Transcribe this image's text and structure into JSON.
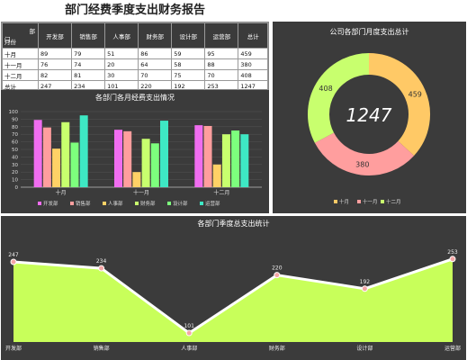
{
  "page_title": "部门经费季度支出财务报告",
  "table": {
    "corner_top": "部",
    "corner_mid": "门",
    "corner_bottom": "月份",
    "headers": [
      "开发部",
      "销售部",
      "人事部",
      "财务部",
      "设计部",
      "运营部",
      "总计"
    ],
    "rows": [
      {
        "label": "十月",
        "values": [
          89,
          79,
          51,
          86,
          59,
          95,
          459
        ]
      },
      {
        "label": "十一月",
        "values": [
          76,
          74,
          20,
          64,
          58,
          88,
          380
        ]
      },
      {
        "label": "十二月",
        "values": [
          82,
          81,
          30,
          70,
          75,
          70,
          408
        ]
      },
      {
        "label": "总计",
        "values": [
          247,
          234,
          101,
          220,
          192,
          253,
          1247
        ]
      }
    ]
  },
  "chart_data": [
    {
      "type": "bar",
      "title": "各部门各月经费支出情况",
      "categories": [
        "十月",
        "十一月",
        "十二月"
      ],
      "series": [
        {
          "name": "开发部",
          "values": [
            89,
            76,
            82
          ],
          "color": "#f06df0"
        },
        {
          "name": "销售部",
          "values": [
            79,
            74,
            81
          ],
          "color": "#ff9e9e"
        },
        {
          "name": "人事部",
          "values": [
            51,
            20,
            30
          ],
          "color": "#ffd166"
        },
        {
          "name": "财务部",
          "values": [
            86,
            64,
            70
          ],
          "color": "#c8ff6e"
        },
        {
          "name": "设计部",
          "values": [
            59,
            58,
            75
          ],
          "color": "#7dff7d"
        },
        {
          "name": "运营部",
          "values": [
            95,
            88,
            70
          ],
          "color": "#3ee8c4"
        }
      ],
      "yticks": [
        0,
        10,
        20,
        30,
        40,
        50,
        60,
        70,
        80,
        90,
        100
      ],
      "ylim": [
        0,
        100
      ],
      "legend_position": "bottom"
    },
    {
      "type": "pie",
      "title": "公司各部门月度支出总计",
      "labels": [
        "十月",
        "十一月",
        "十二月"
      ],
      "values": [
        459,
        380,
        408
      ],
      "colors": [
        "#ffc966",
        "#ff9e9e",
        "#c8ff6e"
      ],
      "center_label": "1247",
      "legend_position": "bottom"
    },
    {
      "type": "area",
      "title": "各部门季度总支出统计",
      "categories": [
        "开发部",
        "销售部",
        "人事部",
        "财务部",
        "设计部",
        "运营部"
      ],
      "values": [
        247,
        234,
        101,
        220,
        192,
        253
      ],
      "fill_color": "#c8ff5a",
      "line_color": "#ffffff"
    }
  ]
}
